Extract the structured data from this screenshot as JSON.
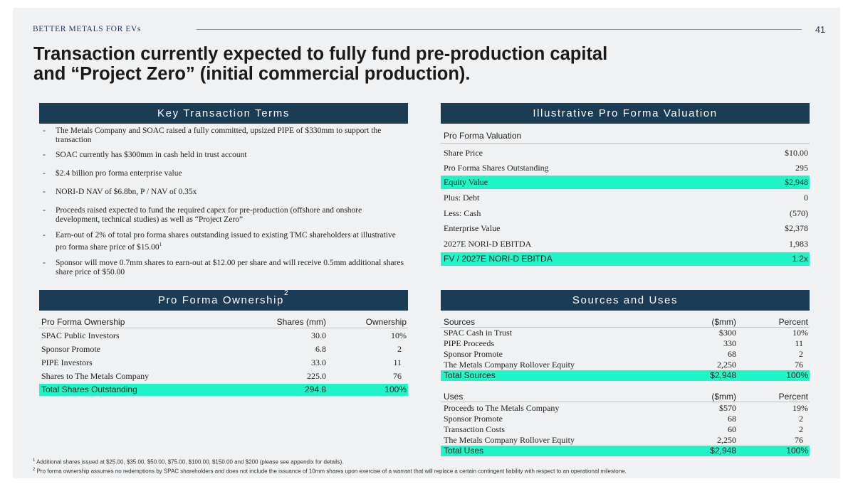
{
  "header": {
    "brand": "BETTER METALS FOR EVs",
    "page_number": "41"
  },
  "title_line1": "Transaction currently expected to fully fund pre-production capital",
  "title_line2": "and “Project Zero” (initial commercial production).",
  "key_terms": {
    "heading": "Key Transaction Terms",
    "bullets": [
      "The Metals Company and SOAC raised a fully committed, upsized PIPE of $330mm to support the transaction",
      "SOAC currently has $300mm in cash held in trust account",
      "$2.4 billion pro forma enterprise value",
      "NORI-D NAV of $6.8bn, P / NAV of 0.35x",
      "Proceeds raised expected to fund the required capex for pre-production (offshore and onshore development, technical studies) as well as “Project Zero”",
      "Earn-out of 2% of total pro forma shares outstanding issued to existing TMC shareholders at illustrative pro forma share price of $15.00",
      "Sponsor will move 0.7mm shares to earn-out at $12.00 per share and will receive 0.5mm additional shares share price of $50.00"
    ],
    "bullet6_sup": "1"
  },
  "valuation": {
    "heading": "Illustrative Pro Forma Valuation",
    "subheading": "Pro Forma Valuation",
    "rows": [
      {
        "label": "Share Price",
        "value": "$10.00"
      },
      {
        "label": "Pro Forma Shares Outstanding",
        "value": "295"
      },
      {
        "label": "Equity Value",
        "value": "$2,948"
      },
      {
        "label": "Plus: Debt",
        "value": "0"
      },
      {
        "label": "Less: Cash",
        "value": "(570)"
      },
      {
        "label": "Enterprise Value",
        "value": "$2,378"
      },
      {
        "label": "2027E NORI-D EBITDA",
        "value": "1,983"
      },
      {
        "label": "FV / 2027E NORI-D EBITDA",
        "value": "1.2x"
      }
    ]
  },
  "ownership": {
    "heading": "Pro Forma Ownership",
    "heading_sup": "2",
    "columns": [
      "Pro Forma Ownership",
      "Shares (mm)",
      "Ownership"
    ],
    "rows": [
      {
        "name": "SPAC Public Investors",
        "shares": "30.0",
        "pct": "10%"
      },
      {
        "name": "Sponsor Promote",
        "shares": "6.8",
        "pct": "2"
      },
      {
        "name": "PIPE Investors",
        "shares": "33.0",
        "pct": "11"
      },
      {
        "name": "Shares to The Metals Company",
        "shares": "225.0",
        "pct": "76"
      }
    ],
    "total": {
      "name": "Total Shares Outstanding",
      "shares": "294.8",
      "pct": "100%"
    }
  },
  "sources_uses": {
    "heading": "Sources and Uses",
    "sources": {
      "columns": [
        "Sources",
        "($mm)",
        "Percent"
      ],
      "rows": [
        {
          "name": "SPAC Cash in Trust",
          "amount": "$300",
          "pct": "10%"
        },
        {
          "name": "PIPE Proceeds",
          "amount": "330",
          "pct": "11"
        },
        {
          "name": "Sponsor Promote",
          "amount": "68",
          "pct": "2"
        },
        {
          "name": "The Metals Company Rollover Equity",
          "amount": "2,250",
          "pct": "76"
        }
      ],
      "total": {
        "name": "Total Sources",
        "amount": "$2,948",
        "pct": "100%"
      }
    },
    "uses": {
      "columns": [
        "Uses",
        "($mm)",
        "Percent"
      ],
      "rows": [
        {
          "name": "Proceeds to The Metals Company",
          "amount": "$570",
          "pct": "19%"
        },
        {
          "name": "Sponsor Promote",
          "amount": "68",
          "pct": "2"
        },
        {
          "name": "Transaction Costs",
          "amount": "60",
          "pct": "2"
        },
        {
          "name": "The Metals Company Rollover Equity",
          "amount": "2,250",
          "pct": "76"
        }
      ],
      "total": {
        "name": "Total Uses",
        "amount": "$2,948",
        "pct": "100%"
      }
    }
  },
  "footnotes": {
    "note1_sup": "1",
    "note1": " Additional shares issued at $25.00, $35.00, $50.00, $75.00, $100.00, $150.00 and $200 (please see appendix for details).",
    "note2_sup": "2",
    "note2": " Pro forma ownership assumes no redemptions by SPAC shareholders and does not include the issuance of 10mm shares upon exercise of a warrant that will replace a certain contingent liability with respect to an operational milestone."
  },
  "colors": {
    "navy": "#1b3c55",
    "highlight": "#1ff5c6",
    "background": "#f0f1f2"
  }
}
